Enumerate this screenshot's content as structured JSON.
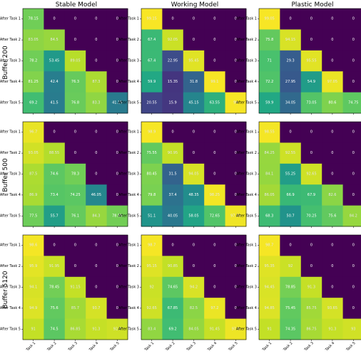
{
  "chart_data": {
    "type": "heatmap",
    "columns": [
      "Stable Model",
      "Working Model",
      "Plastic Model"
    ],
    "rows": [
      "Buffer 200",
      "Buffer 500",
      "Buffer 5120"
    ],
    "y_ticks": [
      "After Task 1",
      "After Task 2",
      "After Task 3",
      "After Task 4",
      "After Task 5"
    ],
    "x_ticks": [
      "Task 1",
      "Task 2",
      "Task 3",
      "Task 4",
      "Task 5"
    ],
    "vmin": 0,
    "vmax": 100,
    "colormap": "viridis",
    "panels": [
      [
        [
          [
            78.15,
            0.0,
            0.0,
            0.0,
            0.0
          ],
          [
            83.05,
            84.5,
            0.0,
            0.0,
            0.0
          ],
          [
            78.2,
            53.45,
            89.05,
            0.0,
            0.0
          ],
          [
            81.25,
            42.4,
            76.3,
            87.3,
            0.0
          ],
          [
            69.2,
            41.5,
            76.8,
            83.3,
            41.15
          ]
        ],
        [
          [
            99.15,
            0.0,
            0.0,
            0.0,
            0.0
          ],
          [
            67.4,
            92.05,
            0.0,
            0.0,
            0.0
          ],
          [
            67.4,
            22.95,
            95.45,
            0.0,
            0.0
          ],
          [
            59.9,
            15.35,
            31.8,
            99.1,
            0.0
          ],
          [
            20.55,
            15.9,
            45.15,
            63.55,
            99.0
          ]
        ],
        [
          [
            99.05,
            0.0,
            0.0,
            0.0,
            0.0
          ],
          [
            75.8,
            94.15,
            0.0,
            0.0,
            0.0
          ],
          [
            71.0,
            29.3,
            95.55,
            0.0,
            0.0
          ],
          [
            72.2,
            27.95,
            54.9,
            97.05,
            0.0
          ],
          [
            59.9,
            34.05,
            73.05,
            80.6,
            74.75
          ]
        ]
      ],
      [
        [
          [
            96.7,
            0.0,
            0.0,
            0.0,
            0.0
          ],
          [
            93.05,
            88.55,
            0.0,
            0.0,
            0.0
          ],
          [
            87.5,
            74.6,
            78.3,
            0.0,
            0.0
          ],
          [
            86.9,
            73.4,
            74.25,
            46.05,
            0.0
          ],
          [
            77.5,
            55.7,
            76.1,
            84.3,
            78.55
          ]
        ],
        [
          [
            98.9,
            0.0,
            0.0,
            0.0,
            0.0
          ],
          [
            75.55,
            90.95,
            0.0,
            0.0,
            0.0
          ],
          [
            80.45,
            31.5,
            94.05,
            0.0,
            0.0
          ],
          [
            79.8,
            37.4,
            48.35,
            98.25,
            0.0
          ],
          [
            51.1,
            40.05,
            58.05,
            72.65,
            97.75
          ]
        ],
        [
          [
            98.55,
            0.0,
            0.0,
            0.0,
            0.0
          ],
          [
            84.25,
            92.55,
            0.0,
            0.0,
            0.0
          ],
          [
            84.1,
            55.25,
            92.65,
            0.0,
            0.0
          ],
          [
            86.05,
            66.9,
            67.9,
            82.6,
            0.0
          ],
          [
            68.3,
            50.7,
            70.25,
            75.6,
            84.2
          ]
        ]
      ],
      [
        [
          [
            98.6,
            0.0,
            0.0,
            0.0,
            0.0
          ],
          [
            95.9,
            91.95,
            0.0,
            0.0,
            0.0
          ],
          [
            94.1,
            78.45,
            91.15,
            0.0,
            0.0
          ],
          [
            94.9,
            75.6,
            85.7,
            93.7,
            0.0
          ],
          [
            91.0,
            74.5,
            86.85,
            91.3,
            92.7
          ]
        ],
        [
          [
            98.7,
            0.0,
            0.0,
            0.0,
            0.0
          ],
          [
            95.15,
            90.85,
            0.0,
            0.0,
            0.0
          ],
          [
            92.0,
            74.65,
            94.2,
            0.0,
            0.0
          ],
          [
            92.65,
            67.85,
            82.5,
            97.2,
            0.0
          ],
          [
            83.4,
            69.2,
            84.05,
            91.45,
            97.6
          ]
        ],
        [
          [
            98.7,
            0.0,
            0.0,
            0.0,
            0.0
          ],
          [
            95.35,
            92.0,
            0.0,
            0.0,
            0.0
          ],
          [
            94.45,
            78.85,
            91.3,
            0.0,
            0.0
          ],
          [
            94.85,
            75.45,
            85.75,
            93.65,
            0.0
          ],
          [
            91.0,
            74.35,
            86.75,
            91.3,
            93.0
          ]
        ]
      ]
    ]
  }
}
